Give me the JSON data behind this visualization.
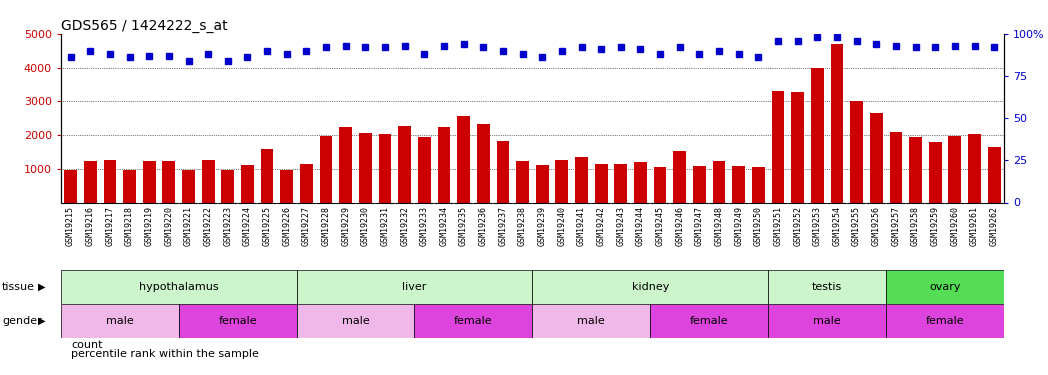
{
  "title": "GDS565 / 1424222_s_at",
  "samples": [
    "GSM19215",
    "GSM19216",
    "GSM19217",
    "GSM19218",
    "GSM19219",
    "GSM19220",
    "GSM19221",
    "GSM19222",
    "GSM19223",
    "GSM19224",
    "GSM19225",
    "GSM19226",
    "GSM19227",
    "GSM19228",
    "GSM19229",
    "GSM19230",
    "GSM19231",
    "GSM19232",
    "GSM19233",
    "GSM19234",
    "GSM19235",
    "GSM19236",
    "GSM19237",
    "GSM19238",
    "GSM19239",
    "GSM19240",
    "GSM19241",
    "GSM19242",
    "GSM19243",
    "GSM19244",
    "GSM19245",
    "GSM19246",
    "GSM19247",
    "GSM19248",
    "GSM19249",
    "GSM19250",
    "GSM19251",
    "GSM19252",
    "GSM19253",
    "GSM19254",
    "GSM19255",
    "GSM19256",
    "GSM19257",
    "GSM19258",
    "GSM19259",
    "GSM19260",
    "GSM19261",
    "GSM19262"
  ],
  "counts": [
    970,
    1230,
    1250,
    960,
    1220,
    1230,
    970,
    1270,
    960,
    1120,
    1600,
    960,
    1150,
    1970,
    2250,
    2060,
    2040,
    2260,
    1940,
    2230,
    2560,
    2340,
    1810,
    1240,
    1110,
    1260,
    1350,
    1130,
    1130,
    1190,
    1050,
    1540,
    1080,
    1240,
    1080,
    1060,
    3300,
    3270,
    4000,
    4700,
    3010,
    2640,
    2080,
    1930,
    1790,
    1960,
    2040,
    1650
  ],
  "percentile_ranks": [
    86,
    90,
    88,
    86,
    87,
    87,
    84,
    88,
    84,
    86,
    90,
    88,
    90,
    92,
    93,
    92,
    92,
    93,
    88,
    93,
    94,
    92,
    90,
    88,
    86,
    90,
    92,
    91,
    92,
    91,
    88,
    92,
    88,
    90,
    88,
    86,
    96,
    96,
    98,
    98,
    96,
    94,
    93,
    92,
    92,
    93,
    93,
    92
  ],
  "ylim_left": [
    0,
    5000
  ],
  "ylim_right": [
    0,
    100
  ],
  "yticks_left": [
    1000,
    2000,
    3000,
    4000,
    5000
  ],
  "yticks_right": [
    0,
    25,
    50,
    75,
    100
  ],
  "bar_color": "#cc0000",
  "dot_color": "#0000cc",
  "plot_bg_color": "#ffffff",
  "xtick_bg_color": "#c8c8c8",
  "tissue_regions": [
    {
      "label": "hypothalamus",
      "start": 0,
      "end": 12,
      "color": "#ccf5cc"
    },
    {
      "label": "liver",
      "start": 12,
      "end": 24,
      "color": "#ccf5cc"
    },
    {
      "label": "kidney",
      "start": 24,
      "end": 36,
      "color": "#ccf5cc"
    },
    {
      "label": "testis",
      "start": 36,
      "end": 42,
      "color": "#ccf5cc"
    },
    {
      "label": "ovary",
      "start": 42,
      "end": 48,
      "color": "#55dd55"
    }
  ],
  "gender_regions": [
    {
      "label": "male",
      "start": 0,
      "end": 6,
      "color": "#f0b8e8"
    },
    {
      "label": "female",
      "start": 6,
      "end": 12,
      "color": "#dd44dd"
    },
    {
      "label": "male",
      "start": 12,
      "end": 18,
      "color": "#f0b8e8"
    },
    {
      "label": "female",
      "start": 18,
      "end": 24,
      "color": "#dd44dd"
    },
    {
      "label": "male",
      "start": 24,
      "end": 30,
      "color": "#f0b8e8"
    },
    {
      "label": "female",
      "start": 30,
      "end": 36,
      "color": "#dd44dd"
    },
    {
      "label": "male",
      "start": 36,
      "end": 42,
      "color": "#dd44dd"
    },
    {
      "label": "female",
      "start": 42,
      "end": 48,
      "color": "#dd44dd"
    }
  ],
  "tissue_label": "tissue",
  "gender_label": "gender",
  "legend_count_label": "count",
  "legend_pct_label": "percentile rank within the sample",
  "title_fontsize": 10,
  "row_label_fontsize": 8,
  "tick_fontsize": 6,
  "axis_tick_fontsize": 8
}
